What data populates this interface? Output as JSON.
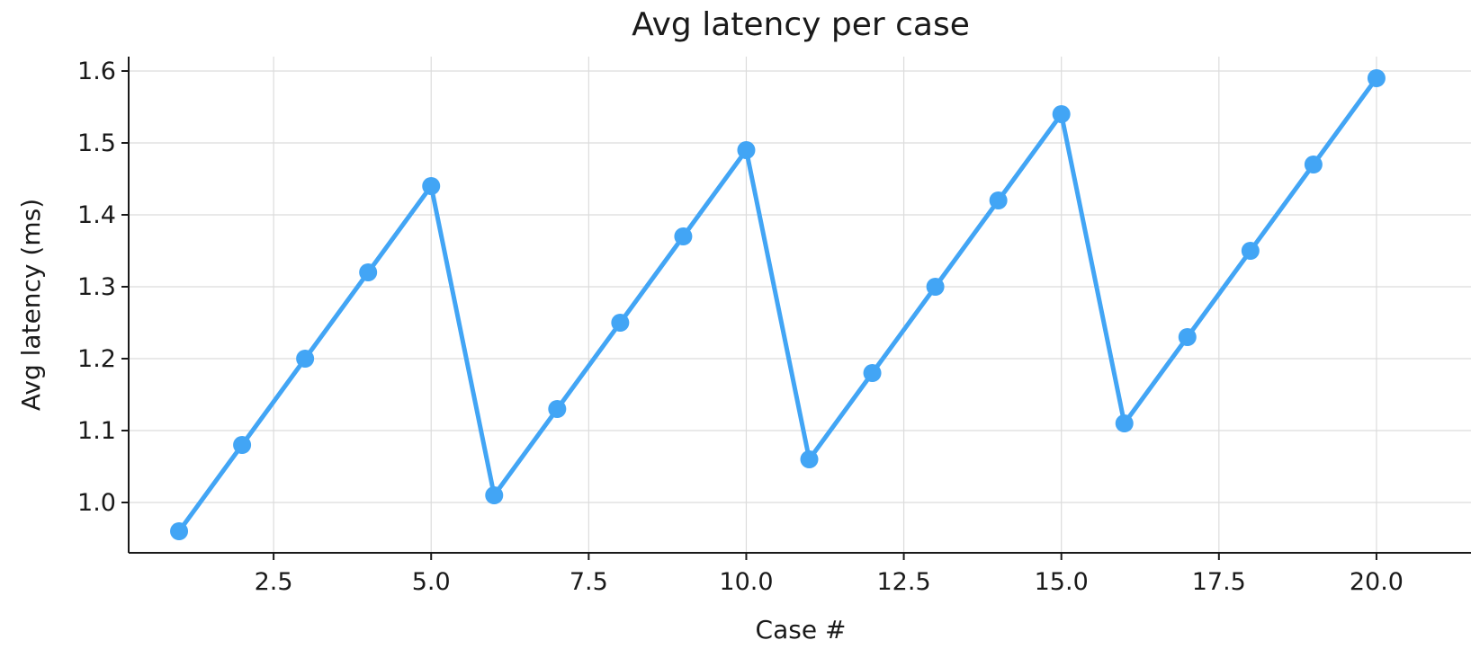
{
  "chart_data": {
    "type": "line",
    "title": "Avg latency per case",
    "xlabel": "Case #",
    "ylabel": "Avg latency (ms)",
    "xlim": [
      0.2,
      21.5
    ],
    "ylim": [
      0.93,
      1.62
    ],
    "xticks": [
      2.5,
      5.0,
      7.5,
      10.0,
      12.5,
      15.0,
      17.5,
      20.0
    ],
    "xtick_labels": [
      "2.5",
      "5.0",
      "7.5",
      "10.0",
      "12.5",
      "15.0",
      "17.5",
      "20.0"
    ],
    "yticks": [
      1.0,
      1.1,
      1.2,
      1.3,
      1.4,
      1.5,
      1.6
    ],
    "ytick_labels": [
      "1.0",
      "1.1",
      "1.2",
      "1.3",
      "1.4",
      "1.5",
      "1.6"
    ],
    "grid": true,
    "color": "#42a5f5",
    "series": [
      {
        "x": [
          1,
          2,
          3,
          4,
          5,
          6,
          7,
          8,
          9,
          10,
          11,
          12,
          13,
          14,
          15,
          16,
          17,
          18,
          19,
          20
        ],
        "values": [
          0.96,
          1.08,
          1.2,
          1.32,
          1.44,
          1.01,
          1.13,
          1.25,
          1.37,
          1.49,
          1.06,
          1.18,
          1.3,
          1.42,
          1.54,
          1.11,
          1.23,
          1.35,
          1.47,
          1.59
        ]
      }
    ]
  }
}
